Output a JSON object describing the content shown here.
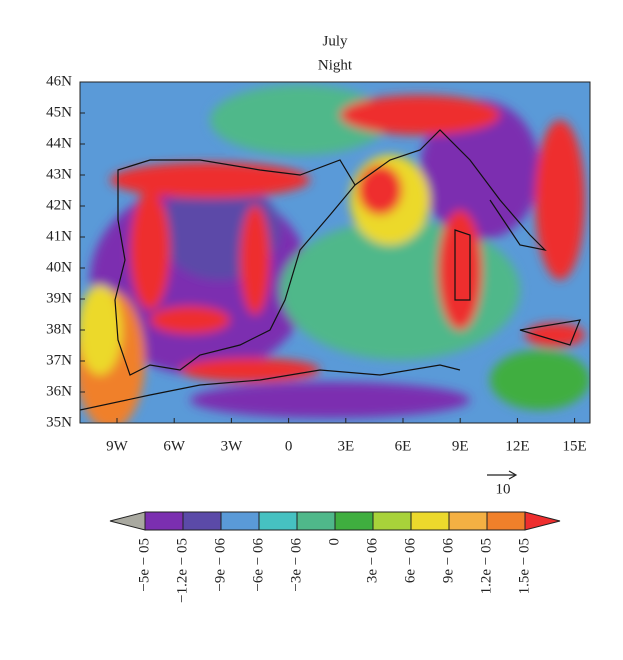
{
  "title": "July",
  "subtitle": "Night",
  "lat_labels": [
    "46N",
    "45N",
    "44N",
    "43N",
    "42N",
    "41N",
    "40N",
    "39N",
    "38N",
    "37N",
    "36N",
    "35N"
  ],
  "lon_labels": [
    "9W",
    "6W",
    "3W",
    "0",
    "3E",
    "6E",
    "9E",
    "12E",
    "15E"
  ],
  "vector_reference": "10",
  "colorbar": {
    "colors": [
      "#a9a9a0",
      "#7b2fb0",
      "#5b4aa8",
      "#5a9ad8",
      "#46c1c1",
      "#4fb88a",
      "#3fae3f",
      "#a8d23a",
      "#ecd92c",
      "#f4b043",
      "#f0802a",
      "#ee2e2e"
    ],
    "ticks": [
      {
        "value": -5e-05,
        "label": "−5e − 05"
      },
      {
        "value": -1.2e-05,
        "label": "−1.2e − 05"
      },
      {
        "value": -9e-06,
        "label": "−9e − 06"
      },
      {
        "value": -6e-06,
        "label": "−6e − 06"
      },
      {
        "value": -3e-06,
        "label": "−3e − 06"
      },
      0,
      {
        "value": 3e-06,
        "label": "3e − 06"
      },
      {
        "value": 6e-06,
        "label": "6e − 06"
      },
      {
        "value": 9e-06,
        "label": "9e − 06"
      },
      {
        "value": 1.2e-05,
        "label": "1.2e − 05"
      },
      {
        "value": 1.5e-05,
        "label": "1.5e − 05"
      }
    ]
  }
}
